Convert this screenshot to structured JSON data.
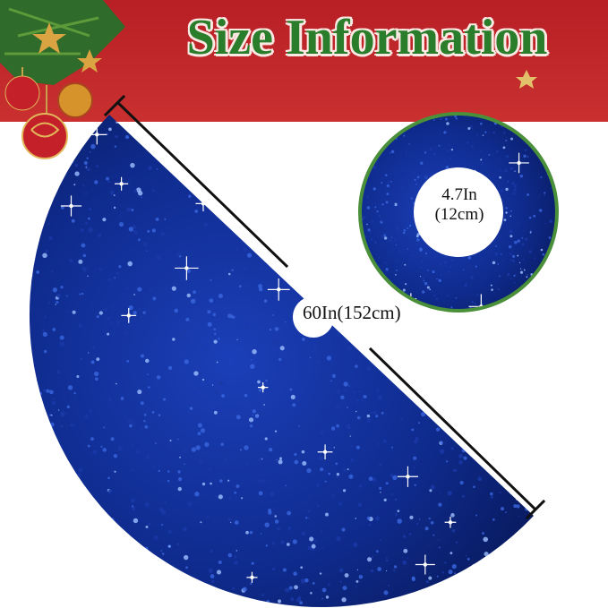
{
  "banner": {
    "title": "Size Information",
    "color": "#c0232a",
    "title_color": "#2a7d2a"
  },
  "skirt": {
    "diameter_label": "60In(152cm)",
    "color": "#0d2a8a"
  },
  "center_hole": {
    "label_line1": "4.7In",
    "label_line2": "(12cm)",
    "ring_color": "#4a8f3a"
  },
  "decorations": [
    "pine-branch",
    "red-ornament",
    "gold-ornament",
    "gold-star"
  ]
}
